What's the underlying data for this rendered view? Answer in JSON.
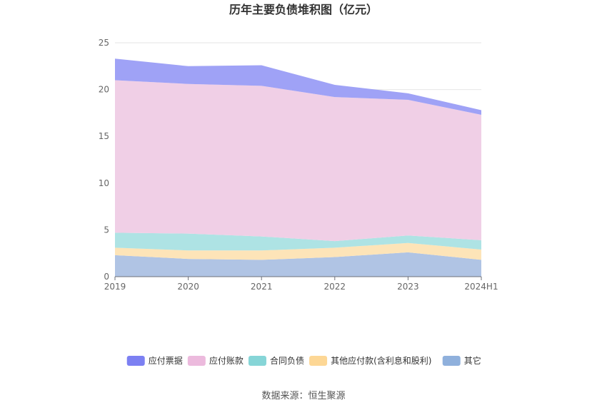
{
  "chart_data": {
    "type": "area",
    "stacked": true,
    "title": "历年主要负债堆积图（亿元）",
    "categories": [
      "2019",
      "2020",
      "2021",
      "2022",
      "2023",
      "2024H1"
    ],
    "ylim": [
      0,
      25
    ],
    "yticks": [
      0,
      5,
      10,
      15,
      20,
      25
    ],
    "grid": true,
    "legend_position": "bottom",
    "series": [
      {
        "name": "其它",
        "color": "#b0c4e4",
        "legend_color": "#8fb0dc",
        "values": [
          2.3,
          1.9,
          1.8,
          2.1,
          2.6,
          1.8
        ]
      },
      {
        "name": "其他应付款(含利息和股利)",
        "color": "#fde4b8",
        "legend_color": "#fdd795",
        "values": [
          0.8,
          0.9,
          1.0,
          1.0,
          1.0,
          1.1
        ]
      },
      {
        "name": "合同负债",
        "color": "#aee3e4",
        "legend_color": "#86d5d7",
        "values": [
          1.6,
          1.8,
          1.5,
          0.7,
          0.8,
          1.0
        ]
      },
      {
        "name": "应付账款",
        "color": "#f0cfe6",
        "legend_color": "#ecbadd",
        "values": [
          16.3,
          16.0,
          16.1,
          15.4,
          14.5,
          13.4
        ]
      },
      {
        "name": "应付票据",
        "color": "#9fa2f6",
        "legend_color": "#7c80f2",
        "values": [
          2.3,
          1.9,
          2.2,
          1.3,
          0.7,
          0.5
        ]
      }
    ],
    "legend_order": [
      "应付票据",
      "应付账款",
      "合同负债",
      "其他应付款(含利息和股利)",
      "其它"
    ]
  },
  "source_label": "数据来源：恒生聚源"
}
